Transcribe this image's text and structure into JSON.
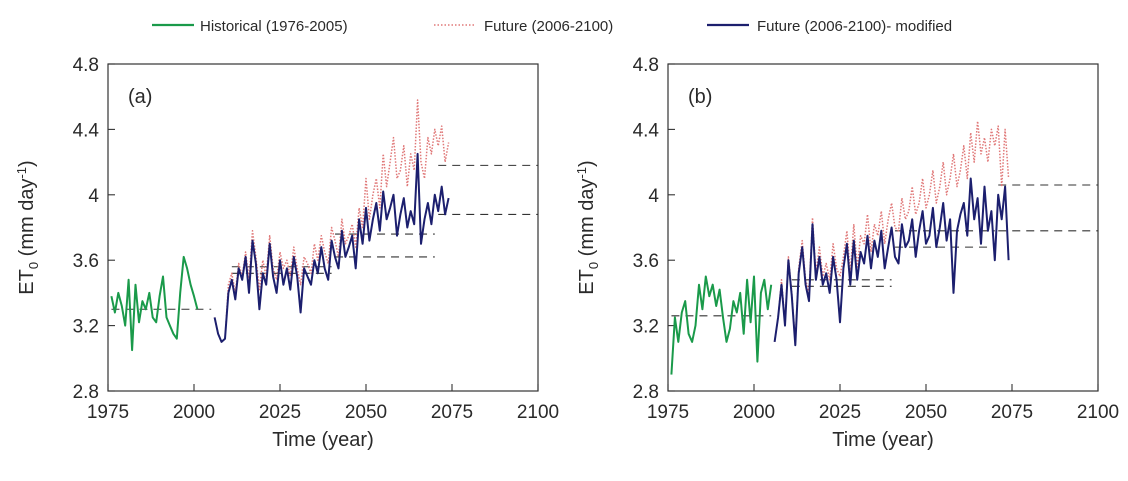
{
  "legend": [
    {
      "label": "Historical (1976-2005)",
      "color": "#1a9a4a",
      "style": "solid"
    },
    {
      "label": "Future (2006-2100)",
      "color": "#e07878",
      "style": "dotted"
    },
    {
      "label": "Future (2006-2100)- modified",
      "color": "#1c1f6e",
      "style": "solid"
    }
  ],
  "chart_data": [
    {
      "type": "line",
      "panel_label": "(a)",
      "xlabel": "Time (year)",
      "ylabel": "ET0 (mm day-1)",
      "ylabel_parts": {
        "main": "ET",
        "sub": "0",
        "unit_start": " (mm day",
        "sup": "-1",
        "unit_end": ")"
      },
      "xlim": [
        1975,
        2100
      ],
      "ylim": [
        2.8,
        4.8
      ],
      "xticks": [
        1975,
        2000,
        2025,
        2050,
        2075,
        2100
      ],
      "yticks": [
        2.8,
        3.2,
        3.6,
        4.0,
        4.4,
        4.8
      ],
      "ytick_labels": [
        "2.8",
        "3.2",
        "3.6",
        "4",
        "4.4",
        "4.8"
      ],
      "grid": false,
      "series": [
        {
          "name": "Historical (1976-2005)",
          "start_year": 1976,
          "values": [
            3.38,
            3.28,
            3.4,
            3.32,
            3.2,
            3.48,
            3.05,
            3.45,
            3.22,
            3.35,
            3.3,
            3.4,
            3.25,
            3.22,
            3.38,
            3.5,
            3.25,
            3.2,
            3.15,
            3.12,
            3.4,
            3.62,
            3.55,
            3.45,
            3.38,
            3.3
          ]
        },
        {
          "name": "Future (2006-2100)",
          "start_year": 2006,
          "values": [
            3.25,
            3.15,
            3.1,
            3.12,
            3.45,
            3.52,
            3.4,
            3.58,
            3.5,
            3.65,
            3.48,
            3.78,
            3.62,
            3.42,
            3.6,
            3.5,
            3.75,
            3.55,
            3.48,
            3.65,
            3.55,
            3.6,
            3.5,
            3.68,
            3.55,
            3.45,
            3.62,
            3.58,
            3.52,
            3.7,
            3.6,
            3.75,
            3.65,
            3.58,
            3.8,
            3.72,
            3.62,
            3.85,
            3.7,
            3.75,
            3.82,
            3.68,
            3.92,
            3.8,
            4.1,
            3.85,
            4.0,
            4.1,
            3.92,
            4.25,
            4.05,
            4.2,
            4.35,
            4.1,
            4.15,
            4.3,
            4.05,
            4.25,
            4.15,
            4.58,
            4.2,
            4.1,
            4.35,
            4.25,
            4.4,
            4.3,
            4.42,
            4.2,
            4.32
          ]
        },
        {
          "name": "Future (2006-2100)- modified",
          "start_year": 2006,
          "values": [
            3.25,
            3.15,
            3.1,
            3.12,
            3.4,
            3.48,
            3.36,
            3.55,
            3.48,
            3.62,
            3.4,
            3.72,
            3.58,
            3.3,
            3.52,
            3.45,
            3.7,
            3.5,
            3.4,
            3.6,
            3.45,
            3.55,
            3.42,
            3.62,
            3.5,
            3.28,
            3.55,
            3.5,
            3.45,
            3.6,
            3.52,
            3.68,
            3.55,
            3.48,
            3.72,
            3.62,
            3.55,
            3.78,
            3.62,
            3.68,
            3.75,
            3.55,
            3.85,
            3.7,
            3.92,
            3.72,
            3.85,
            3.95,
            3.78,
            4.02,
            3.85,
            3.92,
            4.0,
            3.75,
            3.88,
            3.98,
            3.8,
            3.9,
            3.82,
            4.25,
            3.7,
            3.85,
            3.95,
            3.82,
            4.0,
            3.9,
            4.05,
            3.88,
            3.98
          ]
        }
      ],
      "dashed_means": [
        {
          "x": [
            1976,
            2005
          ],
          "y": 3.3
        },
        {
          "x": [
            2011,
            2040
          ],
          "y": 3.52
        },
        {
          "x": [
            2011,
            2040
          ],
          "y": 3.56
        },
        {
          "x": [
            2041,
            2070
          ],
          "y": 3.62
        },
        {
          "x": [
            2041,
            2070
          ],
          "y": 3.76
        },
        {
          "x": [
            2071,
            2100
          ],
          "y": 3.88
        },
        {
          "x": [
            2071,
            2100
          ],
          "y": 4.18
        }
      ]
    },
    {
      "type": "line",
      "panel_label": "(b)",
      "xlabel": "Time (year)",
      "ylabel": "ET0 (mm day-1)",
      "ylabel_parts": {
        "main": "ET",
        "sub": "0",
        "unit_start": " (mm day",
        "sup": "-1",
        "unit_end": ")"
      },
      "xlim": [
        1975,
        2100
      ],
      "ylim": [
        2.8,
        4.8
      ],
      "xticks": [
        1975,
        2000,
        2025,
        2050,
        2075,
        2100
      ],
      "yticks": [
        2.8,
        3.2,
        3.6,
        4.0,
        4.4,
        4.8
      ],
      "ytick_labels": [
        "2.8",
        "3.2",
        "3.6",
        "4",
        "4.4",
        "4.8"
      ],
      "grid": false,
      "series": [
        {
          "name": "Historical (1976-2005)",
          "start_year": 1976,
          "values": [
            2.9,
            3.25,
            3.1,
            3.28,
            3.35,
            3.15,
            3.1,
            3.2,
            3.45,
            3.3,
            3.5,
            3.38,
            3.45,
            3.32,
            3.42,
            3.25,
            3.1,
            3.18,
            3.35,
            3.28,
            3.4,
            3.15,
            3.48,
            3.22,
            3.5,
            2.98,
            3.4,
            3.48,
            3.3,
            3.45
          ]
        },
        {
          "name": "Future (2006-2100)",
          "start_year": 2006,
          "values": [
            3.1,
            3.25,
            3.48,
            3.22,
            3.62,
            3.4,
            3.1,
            3.55,
            3.72,
            3.48,
            3.4,
            3.86,
            3.52,
            3.68,
            3.5,
            3.58,
            3.48,
            3.7,
            3.55,
            3.5,
            3.62,
            3.78,
            3.52,
            3.82,
            3.55,
            3.75,
            3.7,
            3.88,
            3.65,
            3.82,
            3.75,
            3.9,
            3.7,
            3.85,
            3.95,
            3.8,
            3.78,
            3.98,
            3.85,
            3.9,
            4.05,
            3.88,
            3.95,
            4.1,
            3.92,
            4.0,
            4.15,
            3.95,
            4.05,
            4.2,
            4.0,
            4.1,
            4.25,
            4.05,
            4.15,
            4.3,
            4.1,
            4.38,
            4.2,
            4.45,
            4.25,
            4.35,
            4.2,
            4.4,
            4.3,
            4.42,
            4.05,
            4.4,
            4.1
          ]
        },
        {
          "name": "Future (2006-2100)- modified",
          "start_year": 2006,
          "values": [
            3.1,
            3.25,
            3.45,
            3.2,
            3.6,
            3.38,
            3.08,
            3.52,
            3.68,
            3.45,
            3.35,
            3.82,
            3.48,
            3.62,
            3.45,
            3.52,
            3.4,
            3.62,
            3.48,
            3.22,
            3.55,
            3.7,
            3.45,
            3.72,
            3.48,
            3.65,
            3.58,
            3.75,
            3.55,
            3.72,
            3.62,
            3.78,
            3.55,
            3.68,
            3.8,
            3.62,
            3.58,
            3.82,
            3.68,
            3.72,
            3.85,
            3.62,
            3.78,
            3.9,
            3.7,
            3.75,
            3.92,
            3.68,
            3.8,
            3.95,
            3.72,
            3.85,
            3.4,
            3.78,
            3.88,
            3.95,
            3.75,
            4.1,
            3.85,
            3.98,
            3.7,
            4.05,
            3.78,
            3.9,
            3.6,
            4.0,
            3.85,
            4.05,
            3.6
          ]
        }
      ],
      "dashed_means": [
        {
          "x": [
            1976,
            2005
          ],
          "y": 3.26
        },
        {
          "x": [
            2011,
            2040
          ],
          "y": 3.44
        },
        {
          "x": [
            2011,
            2040
          ],
          "y": 3.48
        },
        {
          "x": [
            2041,
            2070
          ],
          "y": 3.68
        },
        {
          "x": [
            2041,
            2070
          ],
          "y": 3.78
        },
        {
          "x": [
            2071,
            2100
          ],
          "y": 3.78
        },
        {
          "x": [
            2071,
            2100
          ],
          "y": 4.06
        }
      ]
    }
  ]
}
